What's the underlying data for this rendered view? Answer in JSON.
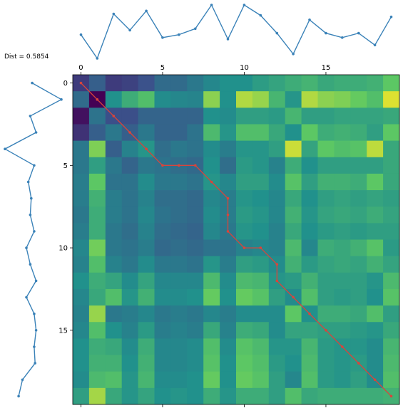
{
  "chart_data": {
    "type": "heatmap",
    "title": "",
    "annotation": "Dist = 0.5854",
    "x_ticks": [
      0,
      5,
      10,
      15
    ],
    "y_ticks": [
      0,
      5,
      10,
      15
    ],
    "grid": false,
    "series_top": {
      "x": [
        0,
        1,
        2,
        3,
        4,
        5,
        6,
        7,
        8,
        9,
        10,
        11,
        12,
        13,
        14,
        15,
        16,
        17,
        18,
        19
      ],
      "values": [
        0.55,
        -0.25,
        1.25,
        0.7,
        1.35,
        0.45,
        0.55,
        0.75,
        1.55,
        0.4,
        1.55,
        1.2,
        0.6,
        -0.1,
        1.05,
        0.6,
        0.45,
        0.6,
        0.2,
        1.15
      ]
    },
    "series_left": {
      "x": [
        0,
        1,
        2,
        3,
        4,
        5,
        6,
        7,
        8,
        9,
        10,
        11,
        12,
        13,
        14,
        15,
        16,
        17,
        18,
        19
      ],
      "values": [
        0.4,
        1.9,
        0.3,
        0.6,
        -1.0,
        0.5,
        0.2,
        0.35,
        0.3,
        0.5,
        0.1,
        0.3,
        0.6,
        0.1,
        0.5,
        0.6,
        0.5,
        0.55,
        -0.1,
        -0.3
      ]
    },
    "warping_path": [
      [
        0,
        0
      ],
      [
        1,
        1
      ],
      [
        2,
        2
      ],
      [
        3,
        3
      ],
      [
        4,
        4
      ],
      [
        5,
        5
      ],
      [
        5,
        6
      ],
      [
        5,
        7
      ],
      [
        6,
        8
      ],
      [
        7,
        9
      ],
      [
        8,
        9
      ],
      [
        9,
        9
      ],
      [
        10,
        10
      ],
      [
        10,
        11
      ],
      [
        11,
        12
      ],
      [
        12,
        12
      ],
      [
        13,
        13
      ],
      [
        14,
        14
      ],
      [
        15,
        15
      ],
      [
        16,
        16
      ],
      [
        17,
        17
      ],
      [
        18,
        18
      ],
      [
        19,
        19
      ]
    ],
    "matrix": [
      [
        0.18,
        0.3,
        0.18,
        0.2,
        0.25,
        0.35,
        0.35,
        0.4,
        0.46,
        0.5,
        0.5,
        0.55,
        0.58,
        0.62,
        0.65,
        0.6,
        0.62,
        0.62,
        0.64,
        0.74
      ],
      [
        0.35,
        0.0,
        0.5,
        0.62,
        0.7,
        0.48,
        0.46,
        0.45,
        0.82,
        0.5,
        0.88,
        0.84,
        0.66,
        0.52,
        0.88,
        0.82,
        0.8,
        0.76,
        0.7,
        0.95
      ],
      [
        0.05,
        0.38,
        0.24,
        0.24,
        0.32,
        0.32,
        0.32,
        0.32,
        0.5,
        0.48,
        0.56,
        0.56,
        0.54,
        0.66,
        0.56,
        0.56,
        0.58,
        0.58,
        0.58,
        0.6
      ],
      [
        0.15,
        0.3,
        0.4,
        0.3,
        0.4,
        0.32,
        0.32,
        0.38,
        0.68,
        0.52,
        0.7,
        0.7,
        0.6,
        0.5,
        0.74,
        0.62,
        0.64,
        0.62,
        0.56,
        0.74
      ],
      [
        0.4,
        0.8,
        0.3,
        0.44,
        0.52,
        0.36,
        0.4,
        0.38,
        0.48,
        0.42,
        0.52,
        0.52,
        0.56,
        0.92,
        0.58,
        0.74,
        0.7,
        0.72,
        0.9,
        0.6
      ],
      [
        0.4,
        0.56,
        0.4,
        0.32,
        0.4,
        0.38,
        0.36,
        0.34,
        0.5,
        0.36,
        0.54,
        0.52,
        0.44,
        0.62,
        0.5,
        0.56,
        0.56,
        0.56,
        0.56,
        0.6
      ],
      [
        0.42,
        0.74,
        0.38,
        0.38,
        0.48,
        0.4,
        0.4,
        0.38,
        0.52,
        0.46,
        0.56,
        0.56,
        0.48,
        0.72,
        0.56,
        0.64,
        0.64,
        0.62,
        0.74,
        0.6
      ],
      [
        0.42,
        0.64,
        0.42,
        0.38,
        0.44,
        0.36,
        0.36,
        0.34,
        0.46,
        0.42,
        0.52,
        0.5,
        0.46,
        0.6,
        0.5,
        0.56,
        0.58,
        0.56,
        0.58,
        0.56
      ],
      [
        0.4,
        0.62,
        0.42,
        0.38,
        0.46,
        0.38,
        0.36,
        0.34,
        0.48,
        0.42,
        0.54,
        0.52,
        0.46,
        0.64,
        0.52,
        0.58,
        0.6,
        0.58,
        0.62,
        0.58
      ],
      [
        0.42,
        0.62,
        0.4,
        0.36,
        0.44,
        0.36,
        0.34,
        0.32,
        0.46,
        0.4,
        0.52,
        0.5,
        0.44,
        0.6,
        0.5,
        0.54,
        0.56,
        0.54,
        0.56,
        0.56
      ],
      [
        0.46,
        0.78,
        0.4,
        0.38,
        0.42,
        0.34,
        0.36,
        0.34,
        0.38,
        0.38,
        0.44,
        0.46,
        0.44,
        0.68,
        0.46,
        0.62,
        0.6,
        0.64,
        0.72,
        0.54
      ],
      [
        0.44,
        0.7,
        0.44,
        0.4,
        0.48,
        0.4,
        0.4,
        0.38,
        0.52,
        0.42,
        0.56,
        0.54,
        0.48,
        0.64,
        0.54,
        0.58,
        0.6,
        0.58,
        0.64,
        0.58
      ],
      [
        0.5,
        0.62,
        0.58,
        0.48,
        0.58,
        0.46,
        0.46,
        0.46,
        0.68,
        0.48,
        0.68,
        0.66,
        0.52,
        0.54,
        0.64,
        0.56,
        0.56,
        0.56,
        0.52,
        0.68
      ],
      [
        0.46,
        0.6,
        0.7,
        0.52,
        0.64,
        0.48,
        0.48,
        0.5,
        0.76,
        0.5,
        0.76,
        0.72,
        0.56,
        0.48,
        0.7,
        0.56,
        0.54,
        0.56,
        0.5,
        0.72
      ],
      [
        0.44,
        0.84,
        0.4,
        0.42,
        0.46,
        0.4,
        0.42,
        0.4,
        0.46,
        0.42,
        0.48,
        0.48,
        0.48,
        0.74,
        0.5,
        0.62,
        0.62,
        0.6,
        0.7,
        0.56
      ],
      [
        0.46,
        0.7,
        0.5,
        0.44,
        0.54,
        0.42,
        0.44,
        0.42,
        0.6,
        0.44,
        0.62,
        0.6,
        0.48,
        0.58,
        0.58,
        0.56,
        0.56,
        0.54,
        0.52,
        0.6
      ],
      [
        0.5,
        0.62,
        0.6,
        0.48,
        0.62,
        0.46,
        0.46,
        0.48,
        0.7,
        0.48,
        0.72,
        0.68,
        0.52,
        0.52,
        0.66,
        0.54,
        0.52,
        0.52,
        0.48,
        0.66
      ],
      [
        0.5,
        0.64,
        0.64,
        0.5,
        0.64,
        0.46,
        0.46,
        0.48,
        0.72,
        0.5,
        0.74,
        0.7,
        0.54,
        0.5,
        0.68,
        0.54,
        0.52,
        0.54,
        0.48,
        0.68
      ],
      [
        0.48,
        0.68,
        0.7,
        0.52,
        0.66,
        0.48,
        0.48,
        0.5,
        0.76,
        0.5,
        0.76,
        0.72,
        0.56,
        0.46,
        0.7,
        0.54,
        0.52,
        0.56,
        0.48,
        0.7
      ],
      [
        0.56,
        0.86,
        0.6,
        0.52,
        0.58,
        0.5,
        0.52,
        0.5,
        0.62,
        0.52,
        0.62,
        0.62,
        0.56,
        0.7,
        0.6,
        0.62,
        0.62,
        0.62,
        0.62,
        0.64
      ]
    ],
    "colors": {
      "series": "#3a82b8",
      "path": "#d9443b",
      "colormap": [
        "#440154",
        "#3b528b",
        "#21918c",
        "#5ec962",
        "#fde725"
      ]
    }
  }
}
